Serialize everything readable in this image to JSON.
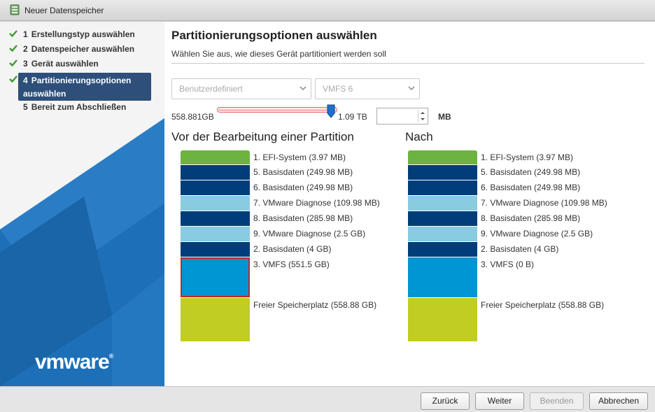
{
  "window": {
    "title": "Neuer Datenspeicher",
    "icon": "datastore-icon"
  },
  "sidebar": {
    "steps": [
      {
        "num": "1",
        "label": "Erstellungstyp auswählen",
        "done": true
      },
      {
        "num": "2",
        "label": "Datenspeicher auswählen",
        "done": true
      },
      {
        "num": "3",
        "label": "Gerät auswählen",
        "done": true
      },
      {
        "num": "4",
        "label": "Partitionierungsoptionen auswählen",
        "done": true,
        "active": true
      },
      {
        "num": "5",
        "label": "Bereit zum Abschließen",
        "done": false
      }
    ],
    "logo": "vmware",
    "logo_mark": "®"
  },
  "main": {
    "title": "Partitionierungsoptionen auswählen",
    "subtitle": "Wählen Sie aus, wie dieses Gerät partitioniert werden soll",
    "partition_select": {
      "value": "Benutzerdefiniert"
    },
    "fs_select": {
      "value": "VMFS 6"
    },
    "size": {
      "min_label": "558.881GB",
      "max_label": "1.09 TB",
      "input_value": "",
      "unit": "MB",
      "slider_fraction": 1.0
    },
    "before": {
      "title": "Vor der Bearbeitung einer Partition",
      "partitions": [
        {
          "label": "1. EFI-System  (3.97 MB)",
          "color": "#6db33f"
        },
        {
          "label": "5. Basisdaten  (249.98 MB)",
          "color": "#003d79"
        },
        {
          "label": "6. Basisdaten  (249.98 MB)",
          "color": "#003d79"
        },
        {
          "label": "7. VMware Diagnose  (109.98 MB)",
          "color": "#89cbdf"
        },
        {
          "label": "8. Basisdaten  (285.98 MB)",
          "color": "#003d79"
        },
        {
          "label": "9. VMware Diagnose  (2.5 GB)",
          "color": "#89cbdf"
        },
        {
          "label": "2. Basisdaten  (4 GB)",
          "color": "#003d79"
        },
        {
          "label": "3. VMFS  (551.5 GB)",
          "color": "#0095d3",
          "selected": true
        },
        {
          "label": "Freier Speicherplatz  (558.88 GB)",
          "color": "#c1cd23"
        }
      ]
    },
    "after": {
      "title": "Nach",
      "partitions": [
        {
          "label": "1. EFI-System  (3.97 MB)",
          "color": "#6db33f"
        },
        {
          "label": "5. Basisdaten  (249.98 MB)",
          "color": "#003d79"
        },
        {
          "label": "6. Basisdaten  (249.98 MB)",
          "color": "#003d79"
        },
        {
          "label": "7. VMware Diagnose  (109.98 MB)",
          "color": "#89cbdf"
        },
        {
          "label": "8. Basisdaten  (285.98 MB)",
          "color": "#003d79"
        },
        {
          "label": "9. VMware Diagnose  (2.5 GB)",
          "color": "#89cbdf"
        },
        {
          "label": "2. Basisdaten  (4 GB)",
          "color": "#003d79"
        },
        {
          "label": "3. VMFS  (0 B)",
          "color": "#0095d3"
        },
        {
          "label": "Freier Speicherplatz  (558.88 GB)",
          "color": "#c1cd23"
        }
      ]
    }
  },
  "footer": {
    "back_label": "Zurück",
    "next_label": "Weiter",
    "finish_label": "Beenden",
    "finish_disabled": true,
    "cancel_label": "Abbrechen"
  }
}
